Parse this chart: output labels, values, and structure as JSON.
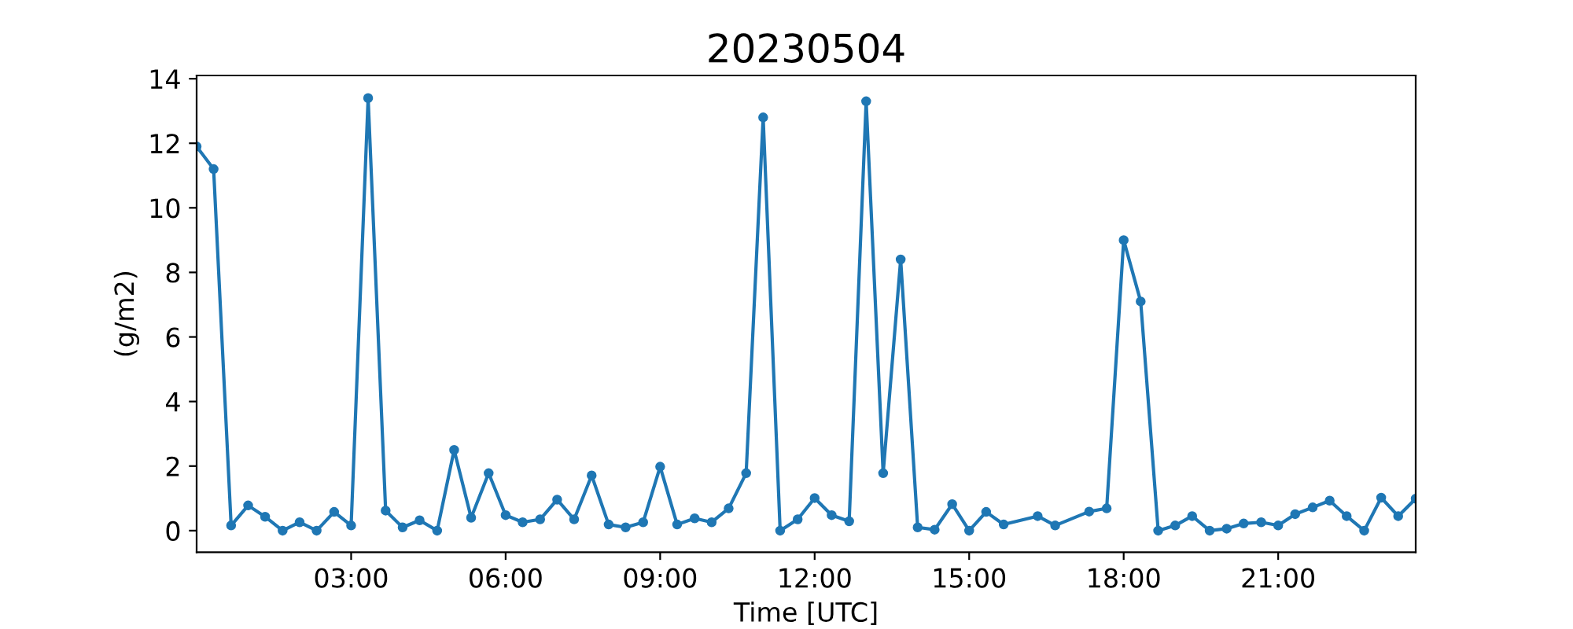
{
  "chart_data": {
    "type": "line",
    "title": "20230504",
    "xlabel": "Time [UTC]",
    "ylabel": "(g/m2)",
    "x": [
      0,
      0.33,
      0.67,
      1.0,
      1.33,
      1.67,
      2.0,
      2.33,
      2.67,
      3.0,
      3.33,
      3.67,
      4.0,
      4.33,
      4.67,
      5.0,
      5.33,
      5.67,
      6.0,
      6.33,
      6.67,
      7.0,
      7.33,
      7.67,
      8.0,
      8.33,
      8.67,
      9.0,
      9.33,
      9.67,
      10.0,
      10.33,
      10.67,
      11.0,
      11.33,
      11.67,
      12.0,
      12.33,
      12.67,
      13.0,
      13.33,
      13.67,
      14.0,
      14.33,
      14.67,
      15.0,
      15.33,
      15.67,
      16.33,
      16.67,
      17.33,
      17.67,
      18.0,
      18.33,
      18.67,
      19.0,
      19.33,
      19.67,
      20.0,
      20.33,
      20.67,
      21.0,
      21.33,
      21.67,
      22.0,
      22.33,
      22.67,
      23.0,
      23.33,
      23.67
    ],
    "series": [
      {
        "color": "#1f77b4",
        "values": [
          11.9,
          11.2,
          0.16,
          0.78,
          0.43,
          0,
          0.26,
          0,
          0.58,
          0.16,
          13.4,
          0.62,
          0.1,
          0.32,
          0,
          2.5,
          0.4,
          1.78,
          0.48,
          0.26,
          0.35,
          0.96,
          0.35,
          1.71,
          0.19,
          0.1,
          0.26,
          1.98,
          0.19,
          0.38,
          0.26,
          0.69,
          1.78,
          12.8,
          0,
          0.35,
          1.01,
          0.48,
          0.29,
          13.3,
          1.78,
          8.4,
          0.1,
          0.03,
          0.82,
          0,
          0.58,
          0.19,
          0.45,
          0.16,
          0.59,
          0.69,
          9.0,
          7.1,
          0,
          0.16,
          0.45,
          0,
          0.06,
          0.22,
          0.26,
          0.16,
          0.51,
          0.72,
          0.93,
          0.45,
          0,
          1.02,
          0.45,
          0.99
        ]
      }
    ],
    "xlim": [
      0,
      23.67
    ],
    "xticks": [
      {
        "value": 3,
        "label": "03:00"
      },
      {
        "value": 6,
        "label": "06:00"
      },
      {
        "value": 9,
        "label": "09:00"
      },
      {
        "value": 12,
        "label": "12:00"
      },
      {
        "value": 15,
        "label": "15:00"
      },
      {
        "value": 18,
        "label": "18:00"
      },
      {
        "value": 21,
        "label": "21:00"
      }
    ],
    "ylim": [
      -0.67,
      14.1
    ],
    "yticks": [
      0,
      2,
      4,
      6,
      8,
      10,
      12,
      14
    ],
    "marker": "circle",
    "line_style": "solid",
    "grid": false,
    "legend": false
  }
}
